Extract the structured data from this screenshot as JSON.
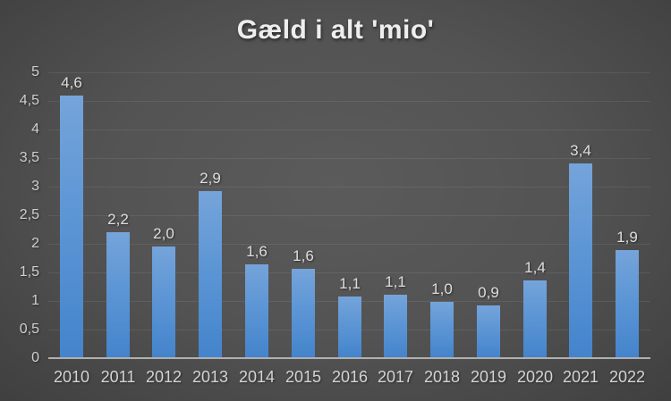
{
  "chart_data": {
    "type": "bar",
    "title": "Gæld i alt 'mio'",
    "categories": [
      "2010",
      "2011",
      "2012",
      "2013",
      "2014",
      "2015",
      "2016",
      "2017",
      "2018",
      "2019",
      "2020",
      "2021",
      "2022"
    ],
    "values": [
      4.6,
      2.2,
      2.0,
      2.9,
      1.6,
      1.6,
      1.1,
      1.1,
      1.0,
      0.9,
      1.4,
      3.4,
      1.9
    ],
    "value_labels": [
      "4,6",
      "2,2",
      "2,0",
      "2,9",
      "1,6",
      "1,6",
      "1,1",
      "1,1",
      "1,0",
      "0,9",
      "1,4",
      "3,4",
      "1,9"
    ],
    "values_rendered": [
      4.58,
      2.2,
      1.95,
      2.91,
      1.64,
      1.56,
      1.08,
      1.1,
      0.98,
      0.92,
      1.35,
      3.4,
      1.88
    ],
    "xlabel": "",
    "ylabel": "",
    "ylim": [
      0,
      5
    ],
    "yticks": [
      0,
      0.5,
      1,
      1.5,
      2,
      2.5,
      3,
      3.5,
      4,
      4.5,
      5
    ],
    "ytick_labels": [
      "0",
      "0,5",
      "1",
      "1,5",
      "2",
      "2,5",
      "3",
      "3,5",
      "4",
      "4,5",
      "5"
    ],
    "grid": true,
    "legend": null,
    "colors": {
      "bar_top": "#75a4da",
      "bar_bottom": "#4484cc",
      "background_center": "#5b5b5b",
      "background_edge": "#232323",
      "gridline": "rgba(255,255,255,0.08)",
      "axis_line": "#b0b0b0",
      "tick_label": "#cfcfcf",
      "value_label": "#dedede",
      "title": "#eeeeee"
    }
  }
}
